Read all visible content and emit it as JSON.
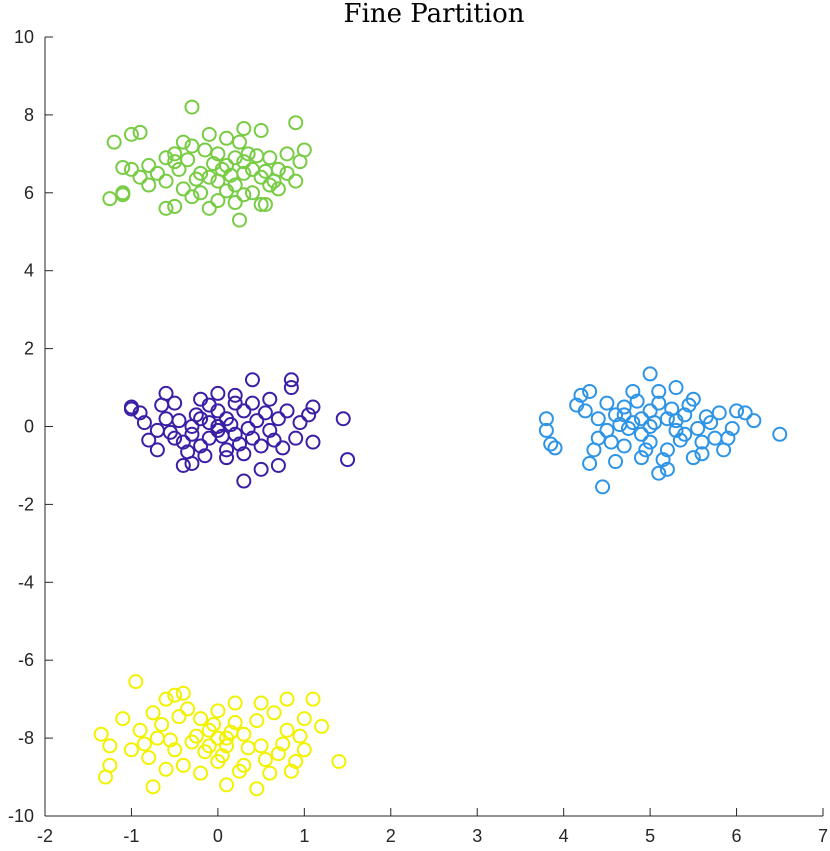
{
  "chart_data": {
    "type": "scatter",
    "title": "Fine Partition",
    "xlabel": "",
    "ylabel": "",
    "xlim": [
      -2,
      7
    ],
    "ylim": [
      -10,
      10
    ],
    "xticks": [
      -2,
      -1,
      0,
      1,
      2,
      3,
      4,
      5,
      6,
      7
    ],
    "yticks": [
      -10,
      -8,
      -6,
      -4,
      -2,
      0,
      2,
      4,
      6,
      8,
      10
    ],
    "grid": false,
    "legend": "none",
    "marker": "open-circle",
    "series": [
      {
        "color": "#77cc44",
        "points": [
          [
            -0.3,
            8.2
          ],
          [
            0.9,
            7.8
          ],
          [
            -1.2,
            7.3
          ],
          [
            -1.0,
            7.5
          ],
          [
            -0.9,
            7.55
          ],
          [
            -1.1,
            6.65
          ],
          [
            -1.0,
            6.6
          ],
          [
            -0.8,
            6.7
          ],
          [
            -1.1,
            6.0
          ],
          [
            -1.1,
            5.95
          ],
          [
            -1.25,
            5.85
          ],
          [
            -0.6,
            5.6
          ],
          [
            -0.5,
            5.65
          ],
          [
            -0.1,
            5.6
          ],
          [
            0.25,
            5.3
          ],
          [
            0.5,
            5.7
          ],
          [
            0.55,
            5.7
          ],
          [
            1.0,
            7.1
          ],
          [
            0.95,
            6.8
          ],
          [
            0.8,
            6.5
          ],
          [
            0.5,
            7.6
          ],
          [
            0.3,
            7.65
          ],
          [
            -0.1,
            7.5
          ],
          [
            -0.4,
            7.3
          ],
          [
            -0.3,
            7.2
          ],
          [
            0.0,
            7.0
          ],
          [
            0.2,
            6.9
          ],
          [
            0.1,
            6.7
          ],
          [
            0.3,
            6.8
          ],
          [
            0.4,
            6.6
          ],
          [
            -0.2,
            6.5
          ],
          [
            -0.1,
            6.4
          ],
          [
            0.0,
            6.3
          ],
          [
            0.2,
            6.2
          ],
          [
            0.3,
            6.5
          ],
          [
            0.5,
            6.4
          ],
          [
            0.6,
            6.9
          ],
          [
            0.7,
            6.1
          ],
          [
            0.6,
            6.2
          ],
          [
            -0.5,
            6.8
          ],
          [
            -0.6,
            6.3
          ],
          [
            -0.7,
            6.5
          ],
          [
            -0.4,
            6.1
          ],
          [
            -0.2,
            6.0
          ],
          [
            0.1,
            6.05
          ],
          [
            0.4,
            6.0
          ],
          [
            0.0,
            5.8
          ],
          [
            -0.3,
            5.9
          ],
          [
            0.2,
            5.75
          ],
          [
            0.7,
            6.6
          ],
          [
            0.8,
            7.0
          ],
          [
            -0.8,
            6.2
          ],
          [
            -0.6,
            6.9
          ],
          [
            0.05,
            6.6
          ],
          [
            0.15,
            6.45
          ],
          [
            -0.05,
            6.75
          ],
          [
            0.25,
            7.3
          ],
          [
            -0.15,
            7.1
          ],
          [
            0.35,
            7.0
          ],
          [
            -0.45,
            6.6
          ],
          [
            0.45,
            6.95
          ],
          [
            -0.25,
            6.35
          ],
          [
            0.55,
            6.55
          ],
          [
            -0.35,
            6.85
          ],
          [
            0.65,
            6.3
          ],
          [
            0.1,
            7.4
          ],
          [
            -0.5,
            7.0
          ],
          [
            0.9,
            6.3
          ],
          [
            -0.9,
            6.4
          ],
          [
            0.3,
            5.95
          ]
        ]
      },
      {
        "color": "#3a1fa6",
        "points": [
          [
            0.4,
            1.2
          ],
          [
            0.85,
            1.2
          ],
          [
            0.85,
            1.0
          ],
          [
            1.45,
            0.2
          ],
          [
            1.5,
            -0.85
          ],
          [
            0.3,
            -1.4
          ],
          [
            -1.0,
            0.5
          ],
          [
            -1.0,
            0.45
          ],
          [
            -0.9,
            0.35
          ],
          [
            -0.8,
            -0.35
          ],
          [
            -0.7,
            -0.6
          ],
          [
            -0.4,
            -1.0
          ],
          [
            -0.3,
            -0.95
          ],
          [
            0.5,
            -1.1
          ],
          [
            0.7,
            -1.0
          ],
          [
            1.1,
            0.5
          ],
          [
            1.05,
            0.3
          ],
          [
            1.1,
            -0.4
          ],
          [
            0.9,
            -0.3
          ],
          [
            0.6,
            0.7
          ],
          [
            0.0,
            0.85
          ],
          [
            -0.2,
            0.7
          ],
          [
            -0.5,
            0.6
          ],
          [
            -0.6,
            0.85
          ],
          [
            0.2,
            0.6
          ],
          [
            0.3,
            0.4
          ],
          [
            0.1,
            0.2
          ],
          [
            -0.1,
            0.1
          ],
          [
            -0.3,
            0.0
          ],
          [
            0.0,
            -0.1
          ],
          [
            0.2,
            -0.2
          ],
          [
            0.4,
            -0.3
          ],
          [
            -0.4,
            -0.4
          ],
          [
            -0.2,
            -0.5
          ],
          [
            0.1,
            -0.6
          ],
          [
            0.3,
            -0.7
          ],
          [
            0.5,
            -0.5
          ],
          [
            0.6,
            -0.1
          ],
          [
            0.7,
            0.2
          ],
          [
            0.8,
            0.4
          ],
          [
            -0.6,
            0.2
          ],
          [
            -0.7,
            -0.1
          ],
          [
            -0.5,
            -0.3
          ],
          [
            0.0,
            0.4
          ],
          [
            -0.1,
            -0.3
          ],
          [
            0.15,
            0.05
          ],
          [
            -0.25,
            0.3
          ],
          [
            0.35,
            -0.05
          ],
          [
            -0.45,
            0.15
          ],
          [
            0.45,
            0.15
          ],
          [
            -0.15,
            -0.75
          ],
          [
            0.25,
            -0.45
          ],
          [
            0.05,
            -0.25
          ],
          [
            -0.35,
            -0.65
          ],
          [
            0.55,
            0.35
          ],
          [
            0.65,
            -0.35
          ],
          [
            -0.55,
            -0.15
          ],
          [
            0.75,
            -0.55
          ],
          [
            -0.65,
            0.55
          ],
          [
            0.95,
            0.1
          ],
          [
            -0.85,
            0.1
          ],
          [
            0.2,
            0.8
          ],
          [
            -0.1,
            0.55
          ],
          [
            0.4,
            0.6
          ],
          [
            -0.3,
            -0.2
          ],
          [
            0.1,
            -0.8
          ],
          [
            0.0,
            0.0
          ],
          [
            -0.2,
            0.2
          ]
        ]
      },
      {
        "color": "#2e94e6",
        "points": [
          [
            5.0,
            1.35
          ],
          [
            4.45,
            -1.55
          ],
          [
            6.5,
            -0.2
          ],
          [
            3.8,
            0.2
          ],
          [
            3.8,
            -0.1
          ],
          [
            3.9,
            -0.55
          ],
          [
            3.85,
            -0.45
          ],
          [
            4.3,
            -0.95
          ],
          [
            4.2,
            0.8
          ],
          [
            4.3,
            0.9
          ],
          [
            4.5,
            -0.1
          ],
          [
            4.6,
            0.3
          ],
          [
            4.7,
            0.5
          ],
          [
            4.8,
            0.1
          ],
          [
            4.9,
            -0.2
          ],
          [
            5.0,
            0.4
          ],
          [
            5.1,
            0.6
          ],
          [
            5.2,
            0.2
          ],
          [
            5.3,
            -0.1
          ],
          [
            5.4,
            0.3
          ],
          [
            5.5,
            0.7
          ],
          [
            5.6,
            -0.4
          ],
          [
            5.7,
            0.1
          ],
          [
            5.8,
            0.35
          ],
          [
            5.9,
            -0.3
          ],
          [
            6.0,
            0.4
          ],
          [
            6.1,
            0.35
          ],
          [
            6.2,
            0.15
          ],
          [
            5.95,
            -0.05
          ],
          [
            4.5,
            0.6
          ],
          [
            4.7,
            -0.5
          ],
          [
            4.9,
            -0.8
          ],
          [
            5.1,
            -1.2
          ],
          [
            5.2,
            -1.1
          ],
          [
            4.6,
            -0.9
          ],
          [
            5.5,
            -0.8
          ],
          [
            5.6,
            -0.7
          ],
          [
            5.3,
            1.0
          ],
          [
            5.1,
            0.9
          ],
          [
            4.8,
            0.9
          ],
          [
            4.4,
            0.2
          ],
          [
            4.4,
            -0.3
          ],
          [
            4.9,
            0.2
          ],
          [
            5.0,
            -0.4
          ],
          [
            5.2,
            -0.6
          ],
          [
            5.4,
            -0.2
          ],
          [
            4.75,
            -0.05
          ],
          [
            5.05,
            0.1
          ],
          [
            5.25,
            0.45
          ],
          [
            4.65,
            0.05
          ],
          [
            5.35,
            -0.35
          ],
          [
            4.85,
            0.65
          ],
          [
            5.15,
            -0.85
          ],
          [
            4.55,
            -0.4
          ],
          [
            5.45,
            0.55
          ],
          [
            5.75,
            -0.3
          ],
          [
            4.25,
            0.4
          ],
          [
            5.65,
            0.25
          ],
          [
            4.95,
            -0.6
          ],
          [
            5.55,
            -0.05
          ],
          [
            4.35,
            -0.6
          ],
          [
            5.85,
            -0.6
          ],
          [
            4.15,
            0.55
          ],
          [
            5.0,
            0.0
          ],
          [
            5.3,
            0.15
          ],
          [
            4.7,
            0.3
          ]
        ]
      },
      {
        "color": "#f2f200",
        "points": [
          [
            -0.95,
            -6.55
          ],
          [
            -1.35,
            -7.9
          ],
          [
            -1.25,
            -8.7
          ],
          [
            -1.25,
            -8.2
          ],
          [
            -1.3,
            -9.0
          ],
          [
            -0.75,
            -9.25
          ],
          [
            0.1,
            -9.2
          ],
          [
            0.45,
            -9.3
          ],
          [
            1.4,
            -8.6
          ],
          [
            1.2,
            -7.7
          ],
          [
            1.1,
            -7.0
          ],
          [
            0.8,
            -7.0
          ],
          [
            0.5,
            -7.1
          ],
          [
            -0.4,
            -6.85
          ],
          [
            -0.5,
            -6.9
          ],
          [
            -0.6,
            -7.0
          ],
          [
            -0.2,
            -7.5
          ],
          [
            0.0,
            -7.3
          ],
          [
            0.2,
            -7.6
          ],
          [
            0.3,
            -7.9
          ],
          [
            0.1,
            -8.0
          ],
          [
            -0.1,
            -8.2
          ],
          [
            -0.3,
            -8.1
          ],
          [
            -0.5,
            -8.3
          ],
          [
            -0.7,
            -8.0
          ],
          [
            -0.9,
            -7.8
          ],
          [
            0.5,
            -8.2
          ],
          [
            0.7,
            -8.4
          ],
          [
            0.9,
            -8.6
          ],
          [
            1.0,
            -8.3
          ],
          [
            -0.4,
            -8.7
          ],
          [
            -0.2,
            -8.9
          ],
          [
            0.0,
            -8.6
          ],
          [
            0.3,
            -8.7
          ],
          [
            0.6,
            -8.9
          ],
          [
            -0.6,
            -8.8
          ],
          [
            -0.8,
            -8.5
          ],
          [
            0.8,
            -7.8
          ],
          [
            1.0,
            -7.5
          ],
          [
            -1.0,
            -8.3
          ],
          [
            -1.1,
            -7.5
          ],
          [
            0.15,
            -7.85
          ],
          [
            -0.05,
            -7.65
          ],
          [
            0.35,
            -8.25
          ],
          [
            -0.25,
            -7.95
          ],
          [
            0.05,
            -8.45
          ],
          [
            -0.45,
            -7.45
          ],
          [
            0.45,
            -7.55
          ],
          [
            -0.65,
            -7.65
          ],
          [
            0.65,
            -7.35
          ],
          [
            0.25,
            -8.85
          ],
          [
            -0.15,
            -8.35
          ],
          [
            0.55,
            -8.55
          ],
          [
            -0.35,
            -7.25
          ],
          [
            0.75,
            -8.15
          ],
          [
            -0.55,
            -8.05
          ],
          [
            0.95,
            -7.95
          ],
          [
            -0.85,
            -8.15
          ],
          [
            0.85,
            -8.85
          ],
          [
            -0.75,
            -7.35
          ],
          [
            0.2,
            -7.1
          ],
          [
            0.0,
            -8.0
          ],
          [
            -0.1,
            -7.8
          ],
          [
            0.1,
            -8.2
          ]
        ]
      }
    ]
  }
}
